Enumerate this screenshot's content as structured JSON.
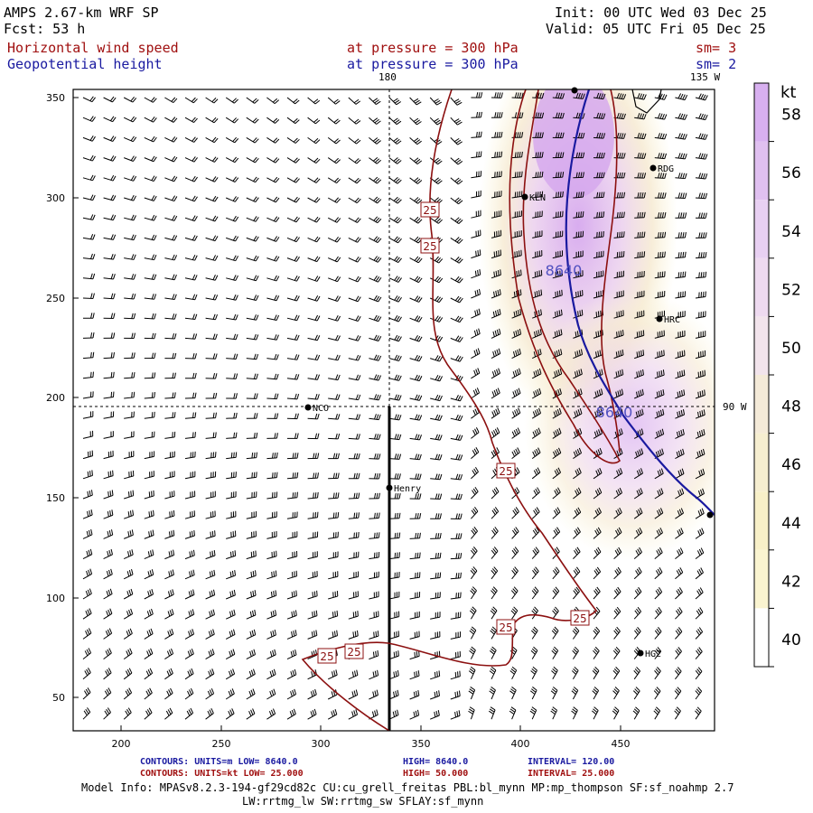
{
  "header": {
    "model": "AMPS 2.67-km WRF SP",
    "forecast": "Fcst:    53 h",
    "init": "Init: 00 UTC Wed 03 Dec 25",
    "valid": "Valid: 05 UTC Fri 05 Dec 25",
    "field1": "Horizontal wind speed",
    "field1_level": "at pressure =  300 hPa",
    "field1_sm": "sm= 3",
    "field2": "Geopotential height",
    "field2_level": "at pressure =  300 hPa",
    "field2_sm": "sm= 2"
  },
  "map": {
    "x_ticks": [
      "200",
      "250",
      "300",
      "350",
      "400",
      "450"
    ],
    "y_ticks": [
      "350",
      "300",
      "250",
      "200",
      "150",
      "100",
      "50"
    ],
    "meridian_180": "180",
    "meridian_135w": "135 W",
    "meridian_90w": "90 W",
    "stations": [
      {
        "name": "NCO",
        "label": "NCO"
      },
      {
        "name": "Henry",
        "label": "Henry"
      },
      {
        "name": "KLN",
        "label": "KLN"
      },
      {
        "name": "RDG",
        "label": "RDG"
      },
      {
        "name": "HRC",
        "label": "HRC"
      },
      {
        "name": "HG2",
        "label": "HG2"
      }
    ],
    "contour_labels_kt": [
      "25",
      "25",
      "25",
      "25",
      "25",
      "25",
      "25"
    ],
    "contour_labels_m": [
      "8640",
      "8640"
    ]
  },
  "colorbar": {
    "unit": "kt",
    "levels": [
      "58",
      "56",
      "54",
      "52",
      "50",
      "48",
      "46",
      "44",
      "42",
      "40"
    ],
    "colors": [
      "#d8b0f0",
      "#e0c0f0",
      "#e8d0f2",
      "#eedaf0",
      "#f2e4ec",
      "#f4ead8",
      "#f6eed0",
      "#f8f0c8",
      "#faf4d0",
      "#ffffff"
    ]
  },
  "footer": {
    "line1_a": "CONTOURS:  UNITS=m  LOW=  8640.0",
    "line1_b": "HIGH=  8640.0",
    "line1_c": "INTERVAL=    120.00",
    "line2_a": "CONTOURS:  UNITS=kt  LOW=  25.000",
    "line2_b": "HIGH=  50.000",
    "line2_c": "INTERVAL=    25.000",
    "model_info": "Model Info: MPASv8.2.3-194-gf29cd82c CU:cu_grell_freitas PBL:bl_mynn MP:mp_thompson SF:sf_noahmp 2.7",
    "model_info2": "LW:rrtmg_lw SW:rrtmg_sw SFLAY:sf_mynn"
  }
}
